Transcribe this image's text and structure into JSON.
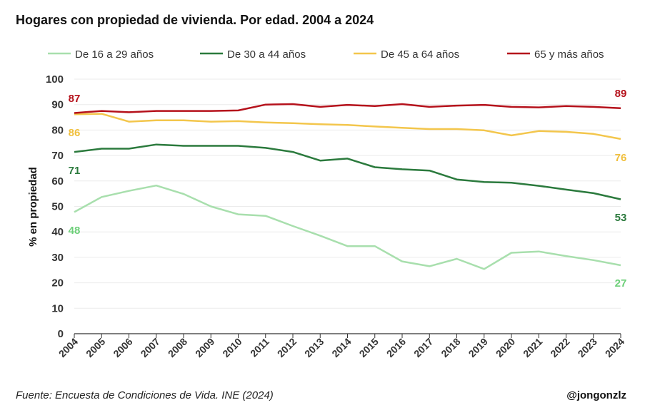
{
  "chart_data": {
    "type": "line",
    "title": "Hogares con propiedad de vivienda. Por edad. 2004 a 2024",
    "ylabel": "% en propiedad",
    "xlabel": "",
    "ylim": [
      0,
      100
    ],
    "yticks": [
      0,
      10,
      20,
      30,
      40,
      50,
      60,
      70,
      80,
      90,
      100
    ],
    "x": [
      "2004",
      "2005",
      "2006",
      "2007",
      "2008",
      "2009",
      "2010",
      "2011",
      "2012",
      "2013",
      "2014",
      "2015",
      "2016",
      "2017",
      "2018",
      "2019",
      "2020",
      "2021",
      "2022",
      "2023",
      "2024"
    ],
    "grid": "horizontal",
    "legend_position": "top",
    "series": [
      {
        "name": "De 16 a 29 años",
        "color": "#a8dfad",
        "label_color": "#6ccf78",
        "start_label": "48",
        "end_label": "27",
        "values": [
          47.8,
          53.7,
          56.1,
          58.2,
          54.9,
          50.0,
          46.9,
          46.3,
          42.3,
          38.5,
          34.4,
          34.4,
          28.4,
          26.5,
          29.4,
          25.4,
          31.8,
          32.3,
          30.5,
          28.9,
          26.9
        ]
      },
      {
        "name": "De 30 a 44 años",
        "color": "#2b7a3d",
        "label_color": "#2b7a3d",
        "start_label": "71",
        "end_label": "53",
        "values": [
          71.4,
          72.7,
          72.7,
          74.3,
          73.8,
          73.8,
          73.8,
          73.0,
          71.4,
          68.0,
          68.8,
          65.4,
          64.6,
          64.1,
          60.6,
          59.6,
          59.3,
          58.1,
          56.6,
          55.2,
          52.8
        ]
      },
      {
        "name": "De 45 a 64 años",
        "color": "#f3c64c",
        "label_color": "#f0bf3c",
        "start_label": "86",
        "end_label": "76",
        "values": [
          86.2,
          86.4,
          83.3,
          83.8,
          83.8,
          83.3,
          83.5,
          83.0,
          82.7,
          82.3,
          82.0,
          81.4,
          80.9,
          80.4,
          80.4,
          79.9,
          77.9,
          79.6,
          79.3,
          78.5,
          76.5
        ]
      },
      {
        "name": "65 y más años",
        "color": "#b5111b",
        "label_color": "#b5111b",
        "start_label": "87",
        "end_label": "89",
        "values": [
          86.7,
          87.5,
          87.0,
          87.5,
          87.5,
          87.5,
          87.7,
          90.0,
          90.2,
          89.1,
          89.9,
          89.4,
          90.2,
          89.1,
          89.6,
          89.9,
          89.1,
          88.9,
          89.4,
          89.1,
          88.6
        ]
      }
    ]
  },
  "footer": {
    "source": "Fuente: Encuesta de Condiciones de Vida. INE (2024)",
    "handle": "@jongonzlz"
  }
}
